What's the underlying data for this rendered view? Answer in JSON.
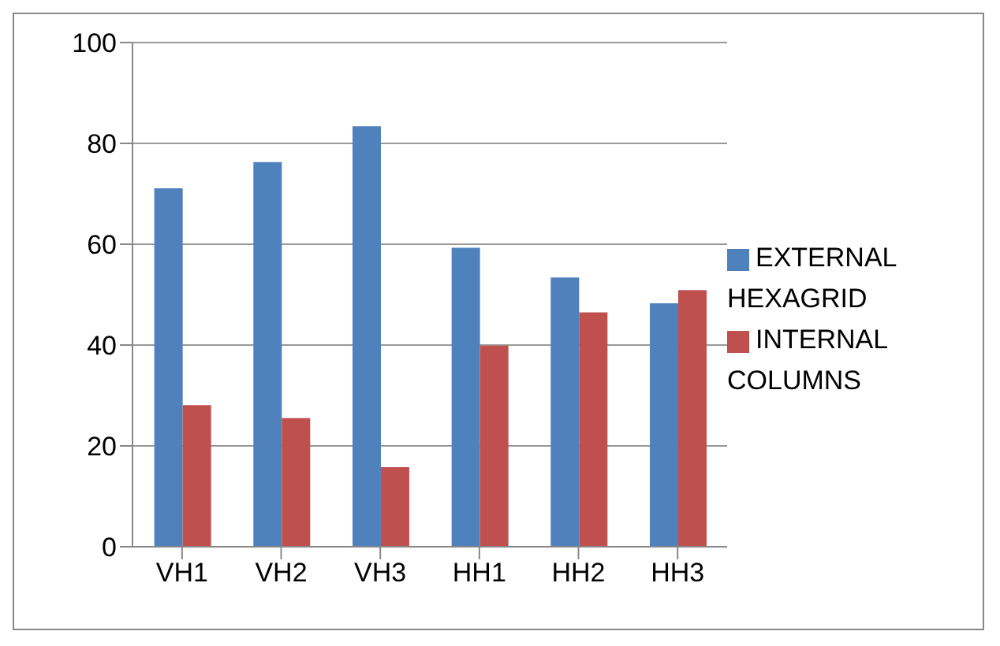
{
  "chart_data": {
    "type": "bar",
    "categories": [
      "VH1",
      "VH2",
      "VH3",
      "HH1",
      "HH2",
      "HH3"
    ],
    "series": [
      {
        "name": "EXTERNAL HEXAGRID",
        "color": "#4f81bd",
        "values": [
          71.1,
          76.3,
          83.4,
          59.3,
          53.4,
          48.3
        ]
      },
      {
        "name": "INTERNAL COLUMNS",
        "color": "#c0504d",
        "values": [
          28.1,
          25.5,
          15.8,
          39.9,
          46.5,
          50.9
        ]
      }
    ],
    "ylim": [
      0,
      100
    ],
    "yticks": [
      0,
      20,
      40,
      60,
      80,
      100
    ],
    "grid": "y",
    "legend": "right"
  }
}
